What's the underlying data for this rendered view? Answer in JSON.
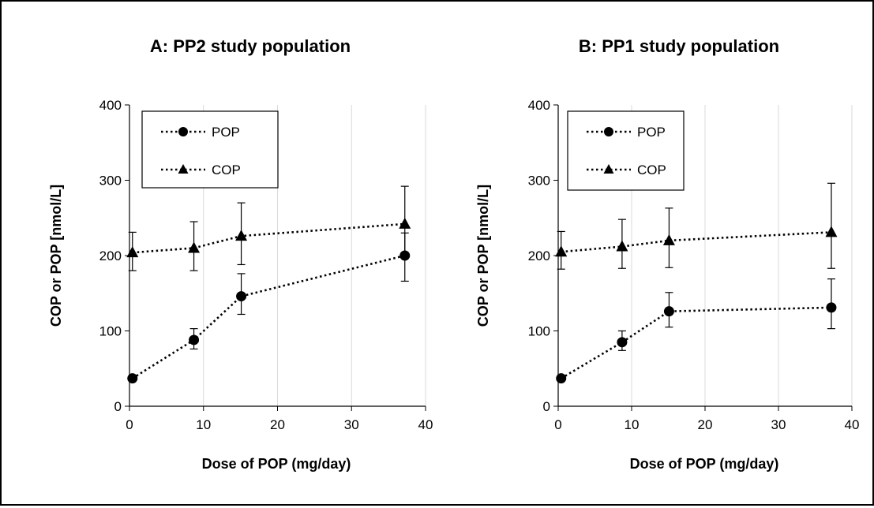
{
  "chart_data": [
    {
      "type": "line",
      "title": "A: PP2 study population",
      "xlabel": "Dose of POP (mg/day)",
      "ylabel": "COP or POP [nmol/L]",
      "xlim": [
        0,
        40
      ],
      "ylim": [
        0,
        400
      ],
      "xticks": [
        0,
        10,
        20,
        30,
        40
      ],
      "yticks": [
        0,
        100,
        200,
        300,
        400
      ],
      "grid": "vertical",
      "legend_position": "top-left",
      "x": [
        0.4,
        8.7,
        15.1,
        37.2
      ],
      "series": [
        {
          "name": "POP",
          "marker": "circle",
          "values": [
            37,
            88,
            146,
            200
          ],
          "err_low": [
            37,
            76,
            122,
            166
          ],
          "err_high": [
            37,
            103,
            176,
            230
          ]
        },
        {
          "name": "COP",
          "marker": "triangle",
          "values": [
            204,
            210,
            226,
            242
          ],
          "err_low": [
            180,
            180,
            188,
            198
          ],
          "err_high": [
            231,
            245,
            270,
            292
          ]
        }
      ]
    },
    {
      "type": "line",
      "title": "B: PP1 study population",
      "xlabel": "Dose of POP (mg/day)",
      "ylabel": "COP or POP [nmol/L]",
      "xlim": [
        0,
        40
      ],
      "ylim": [
        0,
        400
      ],
      "xticks": [
        0,
        10,
        20,
        30,
        40
      ],
      "yticks": [
        0,
        100,
        200,
        300,
        400
      ],
      "grid": "vertical",
      "legend_position": "top-left",
      "x": [
        0.4,
        8.7,
        15.1,
        37.2
      ],
      "series": [
        {
          "name": "POP",
          "marker": "circle",
          "values": [
            37,
            85,
            126,
            131
          ],
          "err_low": [
            37,
            74,
            105,
            103
          ],
          "err_high": [
            37,
            100,
            151,
            169
          ]
        },
        {
          "name": "COP",
          "marker": "triangle",
          "values": [
            205,
            212,
            220,
            231
          ],
          "err_low": [
            182,
            183,
            184,
            183
          ],
          "err_high": [
            232,
            248,
            263,
            296
          ]
        }
      ]
    }
  ]
}
